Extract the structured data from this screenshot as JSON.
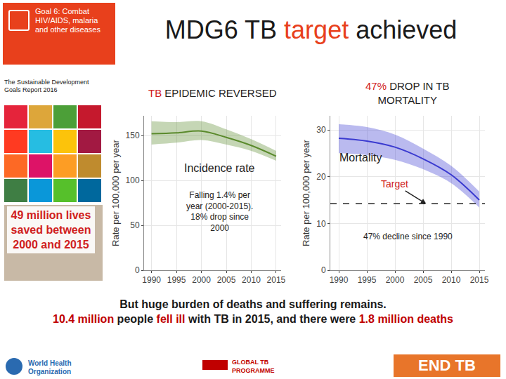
{
  "title": [
    {
      "text": "MDG6 TB "
    },
    {
      "text": "target",
      "color": "#e8401c"
    },
    {
      "text": " achieved"
    }
  ],
  "sidebar": {
    "goal_badge": "Goal 6: Combat HIV/AIDS, malaria and other diseases",
    "report": "The Sustainable Development Goals Report 2016",
    "lives_saved": "49 million lives saved between 2000 and 2015"
  },
  "chart_data": [
    {
      "type": "line",
      "title": "TB EPIDEMIC REVERSED",
      "y_label": "Rate per 100,000 per year",
      "x": [
        1990,
        1995,
        2000,
        2005,
        2010,
        2015
      ],
      "series": [
        {
          "name": "Incidence rate",
          "color": "#5a8a2c",
          "values": [
            152,
            153,
            155,
            148,
            139,
            127
          ],
          "lower": [
            140,
            142,
            145,
            140,
            133,
            122
          ],
          "upper": [
            166,
            165,
            166,
            157,
            146,
            133
          ]
        }
      ],
      "annotations": [
        "Falling 1.4% per year (2000-2015). 18% drop since 2000"
      ],
      "xlim": [
        1988.5,
        2016
      ],
      "xticks": [
        1990,
        1995,
        2000,
        2005,
        2010,
        2015
      ],
      "ylim": [
        0,
        172
      ],
      "yticks": [
        0,
        50,
        100,
        150
      ],
      "grid": true
    },
    {
      "type": "line",
      "title": "47% DROP IN TB MORTALITY",
      "y_label": "Rate per 100,000 per year",
      "x": [
        1990,
        1995,
        2000,
        2005,
        2010,
        2015
      ],
      "series": [
        {
          "name": "Mortality",
          "color": "#3a3ad0",
          "values": [
            28.2,
            27.6,
            26.3,
            23.8,
            20.4,
            15.0
          ],
          "lower": [
            25.0,
            24.6,
            23.6,
            21.6,
            18.6,
            13.4
          ],
          "upper": [
            31.2,
            30.6,
            29.0,
            26.0,
            22.3,
            16.8
          ]
        }
      ],
      "target": {
        "value": 14.2,
        "label": "Target",
        "color": "#d02020",
        "line_style": "dashed"
      },
      "annotations": [
        "47% decline since 1990"
      ],
      "xlim": [
        1988.5,
        2016
      ],
      "xticks": [
        1990,
        1995,
        2000,
        2005,
        2010,
        2015
      ],
      "ylim": [
        0,
        33
      ],
      "yticks": [
        0,
        10,
        20,
        30
      ],
      "grid": true
    }
  ],
  "footer": [
    [
      {
        "text": "But huge burden of deaths and suffering remains."
      }
    ],
    [
      {
        "text": "10.4 million",
        "color": "#c00000"
      },
      {
        "text": " people "
      },
      {
        "text": "fell ill",
        "color": "#c00000"
      },
      {
        "text": " with TB in 2015, and there were "
      },
      {
        "text": "1.8 million deaths",
        "color": "#c00000"
      }
    ]
  ],
  "logos": [
    "World Health Organization",
    "GLOBAL TB PROGRAMME",
    "END TB"
  ]
}
